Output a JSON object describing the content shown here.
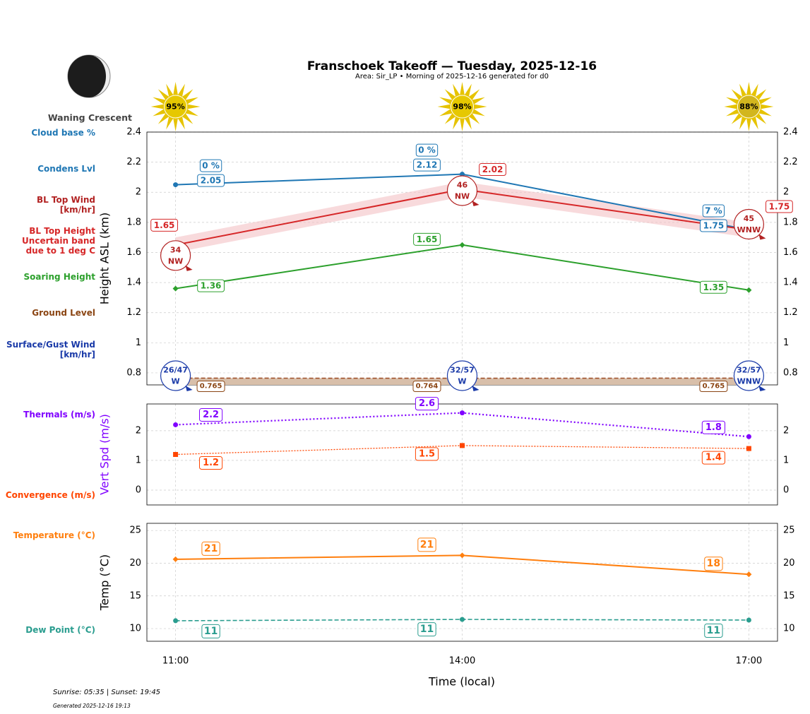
{
  "header": {
    "title": "Franschoek Takeoff — Tuesday, 2025-12-16",
    "subtitle": "Area: Sir_LP • Morning of 2025-12-16 generated for d0",
    "moon_phase": "Waning Crescent",
    "moon_icon": "waning-crescent-moon-icon"
  },
  "footer": {
    "sun_times": "Sunrise: 05:35 | Sunset: 19:45",
    "generated": "Generated 2025-12-16 19:13"
  },
  "side_labels": {
    "cloud_base": {
      "text": "Cloud base %",
      "color": "#1f77b4"
    },
    "condens": {
      "text": "Condens Lvl",
      "color": "#1f77b4"
    },
    "bl_wind": {
      "text": "BL Top Wind\n[km/hr]",
      "color": "#b22222"
    },
    "bl_height": {
      "text": "BL Top Height\nUncertain band\ndue to 1 deg C",
      "color": "#d62728"
    },
    "soaring": {
      "text": "Soaring Height",
      "color": "#2ca02c"
    },
    "ground": {
      "text": "Ground Level",
      "color": "#8b4513"
    },
    "surface_wind": {
      "text": "Surface/Gust Wind\n[km/hr]",
      "color": "#1a3aa8"
    },
    "thermals": {
      "text": "Thermals (m/s)",
      "color": "#8000ff"
    },
    "convergence": {
      "text": "Convergence (m/s)",
      "color": "#ff4500"
    },
    "temperature": {
      "text": "Temperature (°C)",
      "color": "#ff7f0e"
    },
    "dew_point": {
      "text": "Dew Point (°C)",
      "color": "#2a9d8f"
    }
  },
  "chart_data": [
    {
      "type": "line",
      "ylabel": "Height ASL (km)",
      "ylim": [
        0.72,
        2.4
      ],
      "yticks": [
        0.8,
        1.0,
        1.2,
        1.4,
        1.6,
        1.8,
        2.0,
        2.2,
        2.4
      ],
      "x": [
        "11:00",
        "14:00",
        "17:00"
      ],
      "grid": true,
      "sun_percent": [
        "95%",
        "98%",
        "88%"
      ],
      "series": [
        {
          "key": "condens",
          "values": [
            2.05,
            2.12,
            1.75
          ],
          "labels": [
            "2.05",
            "2.12",
            "1.75"
          ],
          "cloud_base": [
            "0 %",
            "0 %",
            "7 %"
          ],
          "color": "#1f77b4"
        },
        {
          "key": "bl_top",
          "values": [
            1.65,
            2.02,
            1.75
          ],
          "labels": [
            "1.65",
            "2.02",
            "1.75"
          ],
          "band": 0.05,
          "color": "#d62728",
          "wind": [
            {
              "speed": "34",
              "dir": "NW"
            },
            {
              "speed": "46",
              "dir": "NW"
            },
            {
              "speed": "45",
              "dir": "WNW"
            }
          ]
        },
        {
          "key": "soaring",
          "values": [
            1.36,
            1.65,
            1.35
          ],
          "labels": [
            "1.36",
            "1.65",
            "1.35"
          ],
          "color": "#2ca02c"
        },
        {
          "key": "ground",
          "values": [
            0.765,
            0.764,
            0.765
          ],
          "labels": [
            "0.765",
            "0.764",
            "0.765"
          ],
          "color": "#a0522d"
        }
      ],
      "surface_wind": [
        {
          "speed": "26/47",
          "dir": "W"
        },
        {
          "speed": "32/57",
          "dir": "W"
        },
        {
          "speed": "32/57",
          "dir": "WNW"
        }
      ]
    },
    {
      "type": "line",
      "ylabel": "Vert Spd (m/s)",
      "ylim": [
        -0.5,
        2.9
      ],
      "yticks": [
        0,
        1,
        2
      ],
      "x": [
        "11:00",
        "14:00",
        "17:00"
      ],
      "series": [
        {
          "key": "thermals",
          "values": [
            2.2,
            2.6,
            1.8
          ],
          "labels": [
            "2.2",
            "2.6",
            "1.8"
          ],
          "color": "#8000ff"
        },
        {
          "key": "convergence",
          "values": [
            1.2,
            1.5,
            1.4
          ],
          "labels": [
            "1.2",
            "1.5",
            "1.4"
          ],
          "color": "#ff4500"
        }
      ]
    },
    {
      "type": "line",
      "ylabel": "Temp (°C)",
      "xlabel": "Time (local)",
      "ylim": [
        8.06,
        26.1
      ],
      "yticks": [
        10,
        15,
        20,
        25
      ],
      "x": [
        "11:00",
        "14:00",
        "17:00"
      ],
      "series": [
        {
          "key": "temperature",
          "values": [
            20.6,
            21.2,
            18.3
          ],
          "labels": [
            "21",
            "21",
            "18"
          ],
          "color": "#ff7f0e"
        },
        {
          "key": "dew_point",
          "values": [
            11.2,
            11.4,
            11.3
          ],
          "labels": [
            "11",
            "11",
            "11"
          ],
          "color": "#2a9d8f"
        }
      ]
    }
  ]
}
